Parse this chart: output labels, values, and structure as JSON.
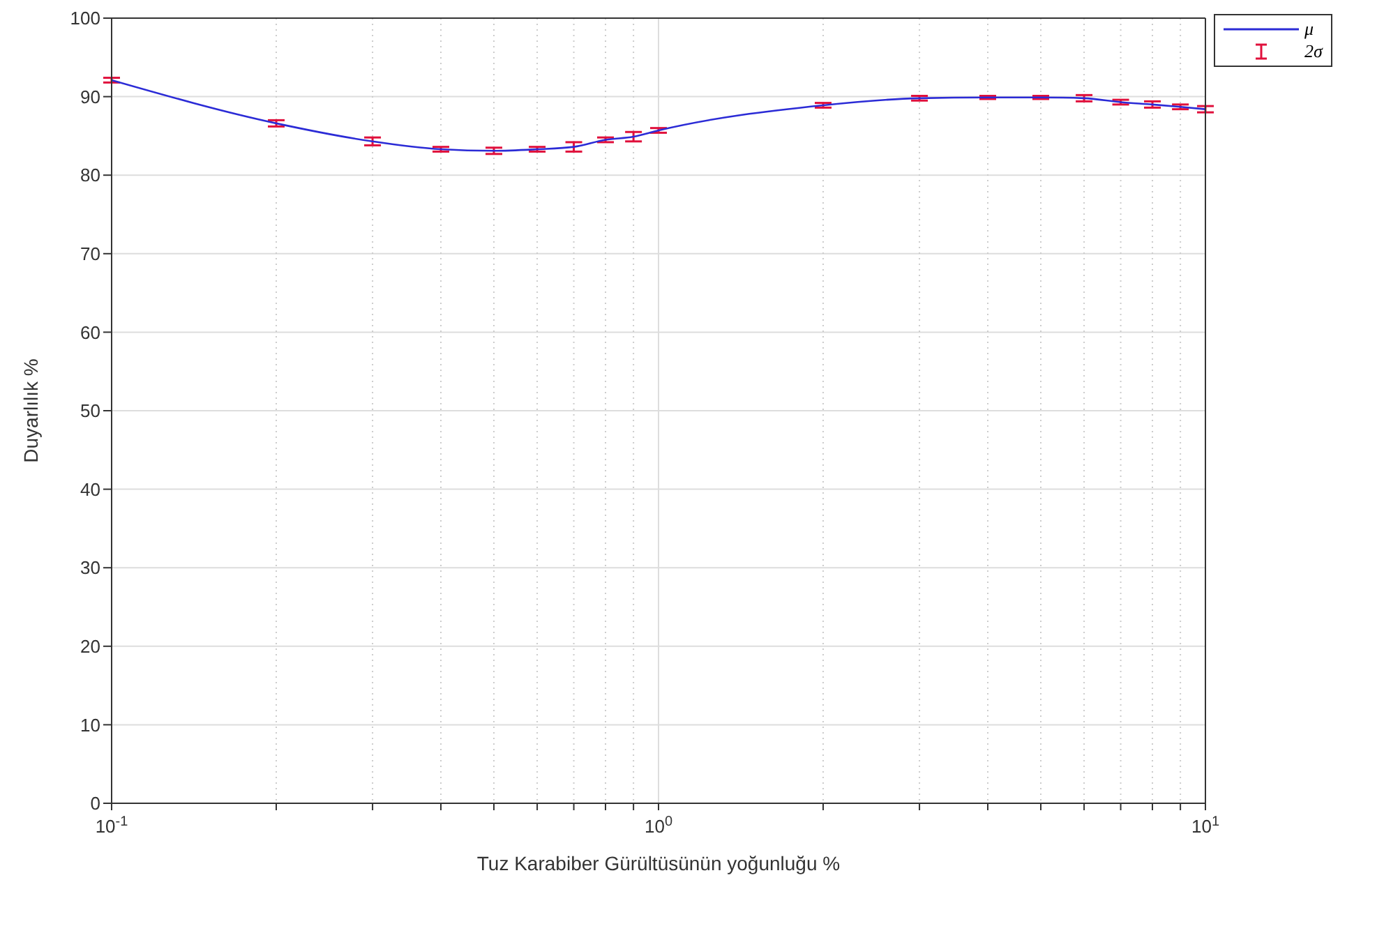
{
  "chart_data": {
    "type": "line",
    "xlabel": "Tuz Karabiber Gürültüsünün yoğunluğu %",
    "ylabel": "Duyarlılık %",
    "log": "x",
    "grid": true,
    "legend": "top right",
    "marker": "none",
    "line_style": "solid",
    "annotations": [
      "2σ"
    ],
    "x": [
      0.1,
      0.2,
      0.3,
      0.4,
      0.5,
      0.6,
      0.7,
      0.8,
      0.9,
      1,
      2,
      3,
      4,
      5,
      6,
      7,
      8,
      9,
      10
    ],
    "xlim": [
      0.1,
      10
    ],
    "xticks": [
      {
        "value": 0.1,
        "label": "10$^{-1}$"
      },
      {
        "value": 0.2,
        "label": null
      },
      {
        "value": 0.3,
        "label": null
      },
      {
        "value": 0.4,
        "label": null
      },
      {
        "value": 0.5,
        "label": null
      },
      {
        "value": 0.6,
        "label": null
      },
      {
        "value": 0.7,
        "label": null
      },
      {
        "value": 0.8,
        "label": null
      },
      {
        "value": 0.9,
        "label": null
      },
      {
        "value": 1,
        "label": "10$^{0}$"
      },
      {
        "value": 2,
        "label": null
      },
      {
        "value": 3,
        "label": null
      },
      {
        "value": 4,
        "label": null
      },
      {
        "value": 5,
        "label": null
      },
      {
        "value": 6,
        "label": null
      },
      {
        "value": 7,
        "label": null
      },
      {
        "value": 8,
        "label": null
      },
      {
        "value": 9,
        "label": null
      },
      {
        "value": 10,
        "label": "10$^{1}$"
      }
    ],
    "ylim": [
      0,
      100
    ],
    "yticks": [
      0,
      10,
      20,
      30,
      40,
      50,
      60,
      70,
      80,
      90,
      100
    ],
    "series": [
      {
        "name": "μ",
        "color": "#2b2bd6",
        "values": [
          92.1,
          86.6,
          84.3,
          83.3,
          83.1,
          83.3,
          83.6,
          84.5,
          84.9,
          85.7,
          88.9,
          89.8,
          89.9,
          89.9,
          89.8,
          89.3,
          89.0,
          88.7,
          88.4
        ],
        "errors": [
          0.3,
          0.4,
          0.5,
          0.3,
          0.4,
          0.3,
          0.6,
          0.3,
          0.6,
          0.3,
          0.3,
          0.3,
          0.2,
          0.2,
          0.4,
          0.3,
          0.4,
          0.3,
          0.4
        ]
      }
    ]
  }
}
